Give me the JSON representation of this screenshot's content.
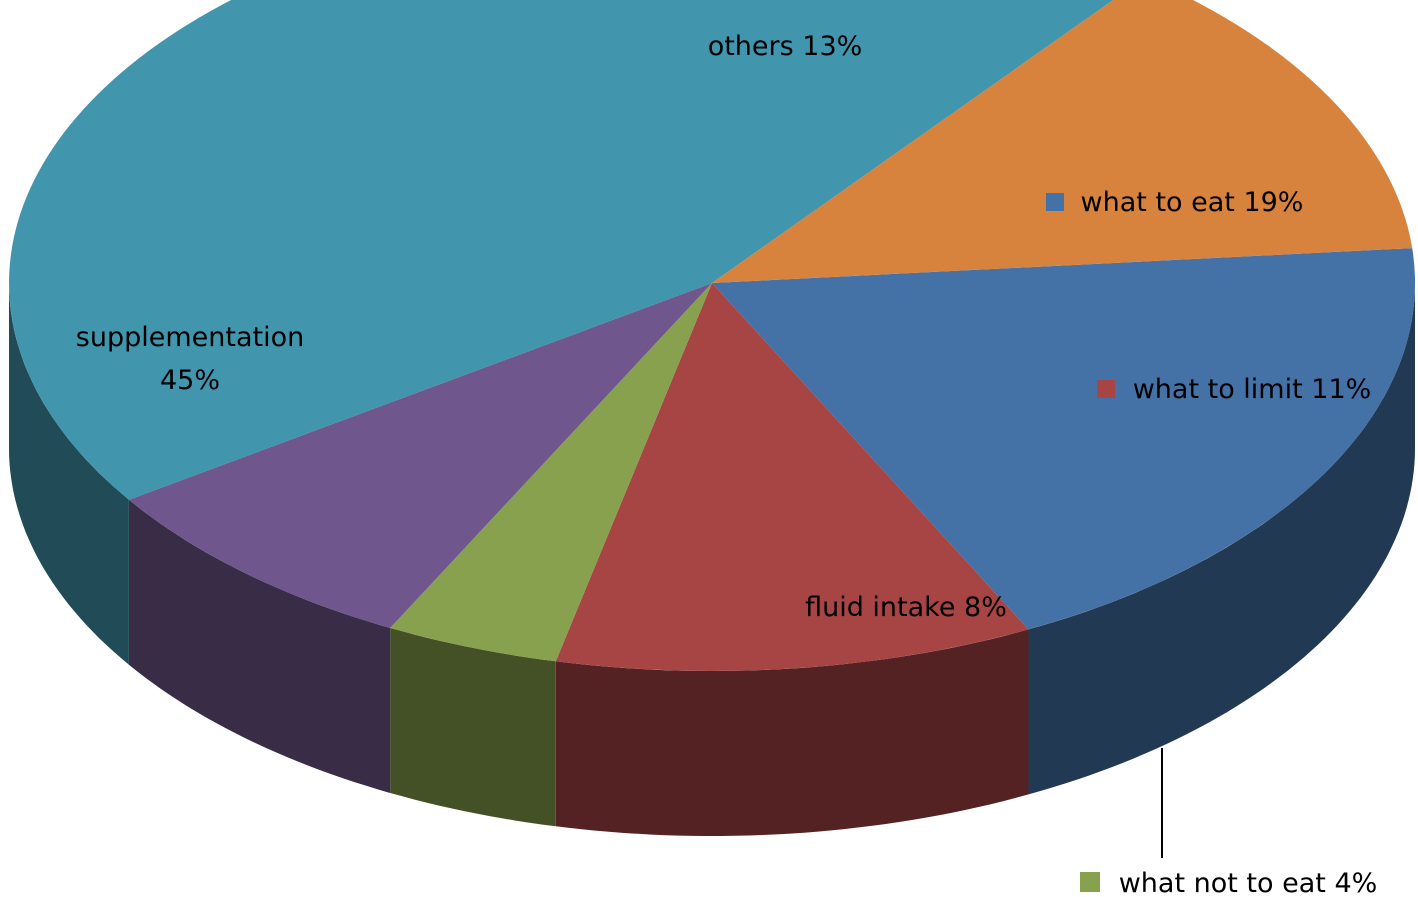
{
  "chart_data": {
    "type": "pie",
    "title": "",
    "three_d": true,
    "slices": [
      {
        "name": "what to eat",
        "label": "what to eat 19%",
        "value": 19,
        "color": "#4471A6"
      },
      {
        "name": "what to limit",
        "label": "what to limit 11%",
        "value": 11,
        "color": "#A74444"
      },
      {
        "name": "what not to eat",
        "label": "what not to eat 4%",
        "value": 4,
        "color": "#87A14E"
      },
      {
        "name": "fluid intake",
        "label": "fluid intake 8%",
        "value": 8,
        "color": "#6F578D"
      },
      {
        "name": "supplementation",
        "label": "supplementation",
        "label_line2": "45%",
        "value": 45,
        "color": "#4195AC"
      },
      {
        "name": "others",
        "label": "others 13%",
        "value": 13,
        "color": "#D7823D"
      }
    ]
  }
}
